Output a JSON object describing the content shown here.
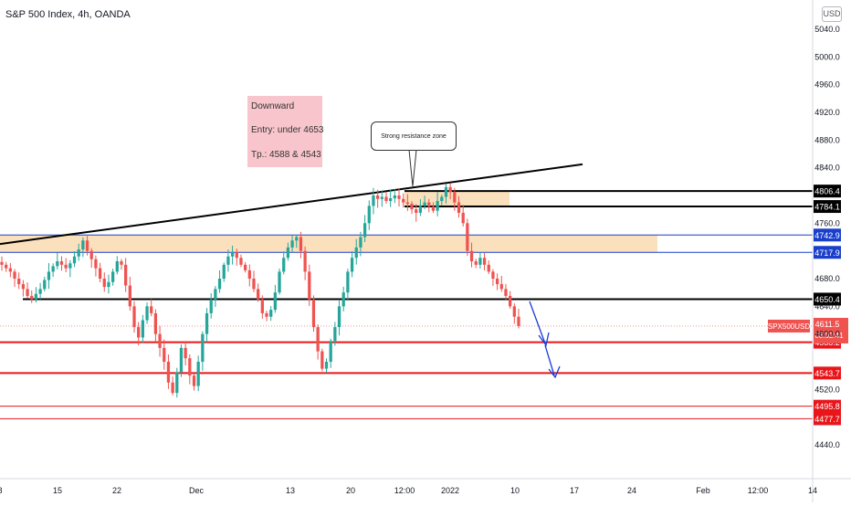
{
  "header": {
    "symbol_title": "S&P 500 Index, 4h, OANDA",
    "currency": "USD"
  },
  "annotation": {
    "lines": [
      "Downward",
      "Entry: under 4653",
      "Tp.: 4588 & 4543"
    ],
    "callout": "Strong resistance zone"
  },
  "colors": {
    "up_candle": "#26a69a",
    "down_candle": "#ef5350",
    "zone_fill": "#fbe0bd",
    "black_line": "#000000",
    "blue_line": "#1a3fcc",
    "red_line": "#e8161b",
    "arrow": "#1b3bd6",
    "annotation_bg": "#f7c5cb"
  },
  "chart_data": {
    "type": "candlestick",
    "title": "S&P 500 Index, 4h, OANDA",
    "ylim": [
      4420,
      5060
    ],
    "y_ticks": [
      5040.0,
      5000.0,
      4960.0,
      4920.0,
      4880.0,
      4840.0,
      4760.0,
      4680.0,
      4640.0,
      4600.0,
      4520.0,
      4440.0
    ],
    "x_ticks": [
      "8",
      "15",
      "22",
      "Dec",
      "13",
      "20",
      "12:00",
      "2022",
      "10",
      "17",
      "24",
      "Feb",
      "12:00",
      "14"
    ],
    "grid": false,
    "horizontal_levels": [
      {
        "value": 4806.4,
        "label": "4806.4",
        "color": "black"
      },
      {
        "value": 4784.1,
        "label": "4784.1",
        "color": "black"
      },
      {
        "value": 4742.9,
        "label": "4742.9",
        "color": "blue"
      },
      {
        "value": 4717.9,
        "label": "4717.9",
        "color": "blue"
      },
      {
        "value": 4650.4,
        "label": "4650.4",
        "color": "black"
      },
      {
        "value": 4588.2,
        "label": "4588.2",
        "color": "red"
      },
      {
        "value": 4543.7,
        "label": "4543.7",
        "color": "red"
      },
      {
        "value": 4495.8,
        "label": "4495.8",
        "color": "red"
      },
      {
        "value": 4477.7,
        "label": "4477.7",
        "color": "red"
      }
    ],
    "current_price": {
      "symbol": "SPX500USD",
      "value": 4611.5,
      "countdown": "03:02:41"
    },
    "zones": [
      {
        "from": 4717.9,
        "to": 4742.9
      },
      {
        "from": 4784.1,
        "to": 4806.4
      }
    ],
    "trendline": {
      "from_value": 4730,
      "to_value": 4845
    },
    "ohlc_close_path": [
      4700,
      4695,
      4690,
      4680,
      4672,
      4665,
      4655,
      4650,
      4658,
      4665,
      4678,
      4690,
      4698,
      4705,
      4700,
      4695,
      4702,
      4712,
      4722,
      4735,
      4720,
      4708,
      4695,
      4680,
      4668,
      4675,
      4690,
      4705,
      4700,
      4670,
      4640,
      4610,
      4595,
      4620,
      4640,
      4630,
      4600,
      4580,
      4560,
      4530,
      4515,
      4545,
      4580,
      4565,
      4540,
      4525,
      4560,
      4600,
      4630,
      4650,
      4665,
      4680,
      4700,
      4712,
      4718,
      4710,
      4700,
      4692,
      4680,
      4665,
      4650,
      4630,
      4625,
      4635,
      4660,
      4690,
      4710,
      4725,
      4735,
      4740,
      4720,
      4690,
      4650,
      4610,
      4575,
      4550,
      4560,
      4590,
      4610,
      4640,
      4660,
      4690,
      4710,
      4725,
      4740,
      4760,
      4785,
      4800,
      4795,
      4798,
      4792,
      4796,
      4800,
      4795,
      4790,
      4788,
      4780,
      4775,
      4785,
      4790,
      4784,
      4778,
      4792,
      4798,
      4812,
      4805,
      4790,
      4775,
      4760,
      4720,
      4705,
      4700,
      4710,
      4700,
      4690,
      4680,
      4672,
      4665,
      4655,
      4640,
      4625,
      4611.5
    ],
    "projection_arrows": "two blue arrows pointing down toward the 4588 and 4543 levels"
  }
}
